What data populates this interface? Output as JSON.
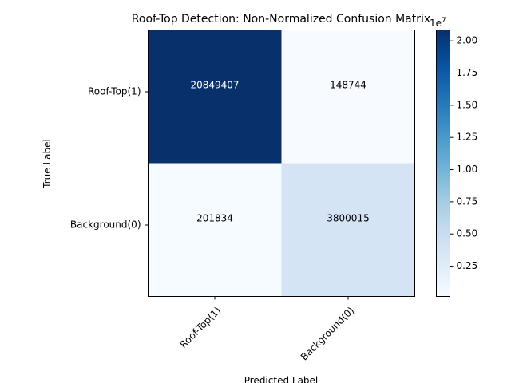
{
  "chart_data": {
    "type": "heatmap",
    "title": "Roof-Top Detection: Non-Normalized Confusion Matrix",
    "xlabel": "Predicted Label",
    "ylabel": "True Label",
    "row_labels": [
      "Roof-Top(1)",
      "Background(0)"
    ],
    "col_labels": [
      "Roof-Top(1)",
      "Background(0)"
    ],
    "values": [
      [
        20849407,
        148744
      ],
      [
        201834,
        3800015
      ]
    ],
    "colormap": "Blues",
    "colorbar": {
      "ticks": [
        0.25,
        0.5,
        0.75,
        1.0,
        1.25,
        1.5,
        1.75,
        2.0
      ],
      "tick_labels": [
        "0.25",
        "0.50",
        "0.75",
        "1.00",
        "1.25",
        "1.50",
        "1.75",
        "2.00"
      ],
      "multiplier": "1e7"
    }
  }
}
